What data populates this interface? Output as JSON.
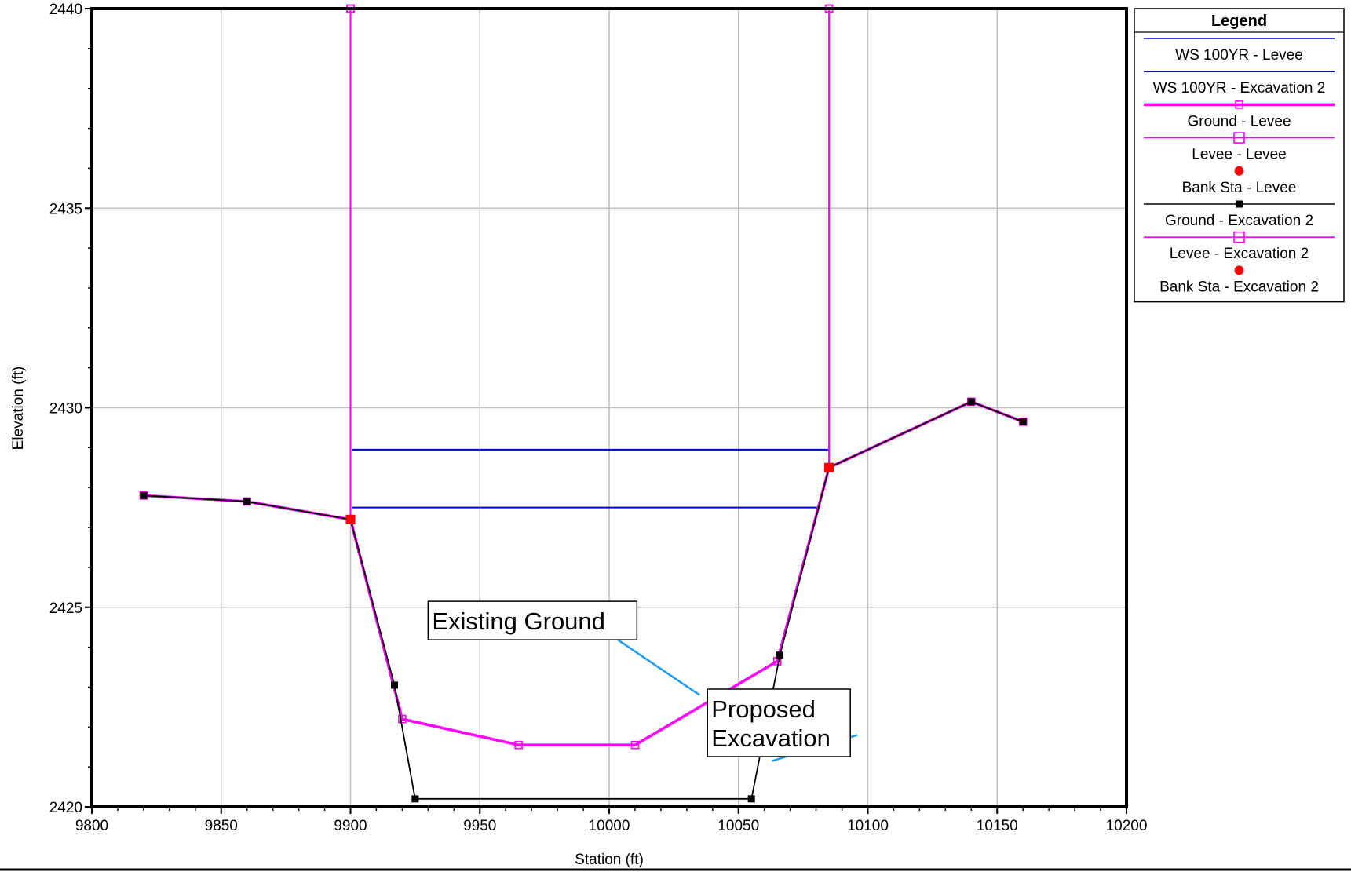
{
  "chart_data": {
    "type": "line",
    "title": "",
    "xlabel": "Station (ft)",
    "ylabel": "Elevation (ft)",
    "xlim": [
      9800,
      10200
    ],
    "ylim": [
      2420,
      2440
    ],
    "x_ticks": [
      9800,
      9850,
      9900,
      9950,
      10000,
      10050,
      10100,
      10150,
      10200
    ],
    "y_ticks": [
      2420,
      2425,
      2430,
      2435,
      2440
    ],
    "grid": true,
    "legend": {
      "title": "Legend",
      "placement": "right",
      "entries": [
        "WS 100YR - Levee",
        "WS 100YR - Excavation 2",
        "Ground - Levee",
        "Levee - Levee",
        "Bank Sta - Levee",
        "Ground - Excavation 2",
        "Levee - Excavation 2",
        "Bank Sta - Excavation 2"
      ]
    },
    "series": [
      {
        "name": "WS 100YR - Levee",
        "color": "#0000cc",
        "style": "line",
        "points": [
          [
            9900.5,
            2428.95
          ],
          [
            10085,
            2428.95
          ]
        ]
      },
      {
        "name": "WS 100YR - Excavation 2",
        "color": "#0000cc",
        "style": "line",
        "points": [
          [
            9900.5,
            2427.5
          ],
          [
            10081,
            2427.5
          ]
        ]
      },
      {
        "name": "Ground - Levee",
        "color": "#ff00ff",
        "style": "line-open-square",
        "points": [
          [
            9820,
            2427.8
          ],
          [
            9860,
            2427.65
          ],
          [
            9900,
            2427.2
          ],
          [
            9920,
            2422.2
          ],
          [
            9965,
            2421.55
          ],
          [
            10010,
            2421.55
          ],
          [
            10065,
            2423.65
          ],
          [
            10085,
            2428.5
          ],
          [
            10140,
            2430.15
          ],
          [
            10160,
            2429.65
          ]
        ]
      },
      {
        "name": "Levee - Levee",
        "color": "#ff00ff",
        "style": "line-open-square",
        "points": [
          [
            9900,
            2440
          ],
          [
            9900,
            2427.2
          ]
        ]
      },
      {
        "name": "Levee - Levee",
        "color": "#ff00ff",
        "style": "line-open-square",
        "points": [
          [
            10085,
            2440
          ],
          [
            10085,
            2428.5
          ]
        ]
      },
      {
        "name": "Bank Sta - Levee",
        "color": "#ff0000",
        "style": "marker-dot",
        "points": [
          [
            9900,
            2427.2
          ],
          [
            10085,
            2428.5
          ]
        ]
      },
      {
        "name": "Ground - Excavation 2",
        "color": "#000000",
        "style": "line-filled-square",
        "points": [
          [
            9820,
            2427.8
          ],
          [
            9860,
            2427.65
          ],
          [
            9900,
            2427.2
          ],
          [
            9917,
            2423.05
          ],
          [
            9925,
            2420.2
          ],
          [
            10055,
            2420.2
          ],
          [
            10066,
            2423.8
          ],
          [
            10085,
            2428.5
          ],
          [
            10140,
            2430.15
          ],
          [
            10160,
            2429.65
          ]
        ]
      },
      {
        "name": "Levee - Excavation 2",
        "color": "#ff00ff",
        "style": "line-open-square",
        "points": [
          [
            9900,
            2440
          ],
          [
            9900,
            2427.2
          ]
        ]
      },
      {
        "name": "Levee - Excavation 2",
        "color": "#ff00ff",
        "style": "line-open-square",
        "points": [
          [
            10085,
            2440
          ],
          [
            10085,
            2428.5
          ]
        ]
      },
      {
        "name": "Bank Sta - Excavation 2",
        "color": "#ff0000",
        "style": "marker-dot",
        "points": [
          [
            9900,
            2427.2
          ],
          [
            10085,
            2428.5
          ]
        ]
      }
    ],
    "annotations": [
      {
        "lines": [
          "Existing Ground"
        ],
        "box_anchor": [
          9930,
          2425.15
        ],
        "pointer": [
          [
            10003,
            2424.2
          ],
          [
            10035,
            2422.8
          ]
        ]
      },
      {
        "lines": [
          "Proposed",
          "Excavation"
        ],
        "box_anchor": [
          10038,
          2422.95
        ],
        "pointer": [
          [
            10096,
            2421.8
          ],
          [
            10063,
            2421.15
          ]
        ]
      }
    ]
  }
}
